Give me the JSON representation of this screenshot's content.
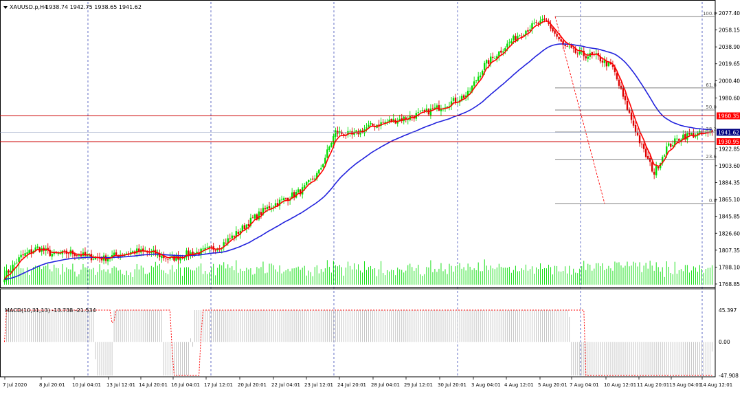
{
  "header": {
    "symbol": "XAUUSD.p,H4",
    "ohlc": "1938.74 1942.75 1938.65 1941.62"
  },
  "macd_header": "MACD(10,31,13) -13.738 -21.534",
  "colors": {
    "background": "#ffffff",
    "grid": "#3b4ab8",
    "bull_candle": "#00dd00",
    "bear_candle": "#dd0000",
    "fast_ma": "#ff0000",
    "slow_ma": "#2222dd",
    "volume": "#00dd00",
    "macd_hist": "#c0c0c0",
    "macd_signal": "#ff0000",
    "hline": "#cc0000",
    "fib": "#555555",
    "price_label_red": "#ff0000",
    "price_label_dark": "#000080"
  },
  "chart_data": [
    {
      "type": "candlestick",
      "title": "XAUUSD.p,H4",
      "x_ticks": [
        "7 Jul 2020",
        "8 Jul 20:01",
        "10 Jul 04:01",
        "13 Jul 12:01",
        "14 Jul 20:01",
        "16 Jul 04:01",
        "17 Jul 12:01",
        "20 Jul 20:01",
        "22 Jul 04:01",
        "23 Jul 12:01",
        "24 Jul 20:01",
        "28 Jul 04:01",
        "29 Jul 12:01",
        "30 Jul 20:01",
        "3 Aug 04:01",
        "4 Aug 12:01",
        "5 Aug 20:01",
        "7 Aug 04:01",
        "10 Aug 12:01",
        "11 Aug 20:01",
        "13 Aug 04:01",
        "14 Aug 12:01"
      ],
      "y_ticks": [
        2077.4,
        2058.15,
        2038.9,
        2019.65,
        2000.4,
        1980.6,
        1960.35,
        1941.62,
        1930.95,
        1922.85,
        1903.6,
        1884.35,
        1865.1,
        1845.85,
        1826.6,
        1807.35,
        1788.1,
        1768.85
      ],
      "ylim": [
        1768.85,
        2077.4
      ],
      "price_labels": [
        {
          "value": 1960.35,
          "label": "1960.35",
          "style": "red"
        },
        {
          "value": 1941.62,
          "label": "1941.62",
          "style": "dark"
        },
        {
          "value": 1930.95,
          "label": "1930.95",
          "style": "red"
        }
      ],
      "horizontal_lines": [
        1960.35,
        1930.95
      ],
      "fibonacci": {
        "high": 2073.5,
        "low": 1860.5,
        "levels": [
          {
            "label": "100.0",
            "ratio": 1.0
          },
          {
            "label": "61.8",
            "ratio": 0.618
          },
          {
            "label": "50.0",
            "ratio": 0.5
          },
          {
            "label": "38.2",
            "ratio": 0.382
          },
          {
            "label": "23.6",
            "ratio": 0.236
          },
          {
            "label": "0.0",
            "ratio": 0.0
          }
        ]
      },
      "close_anchors": [
        [
          0,
          1778
        ],
        [
          8,
          1800
        ],
        [
          16,
          1810
        ],
        [
          24,
          1802
        ],
        [
          32,
          1805
        ],
        [
          40,
          1800
        ],
        [
          48,
          1798
        ],
        [
          56,
          1803
        ],
        [
          64,
          1806
        ],
        [
          72,
          1804
        ],
        [
          80,
          1797
        ],
        [
          88,
          1803
        ],
        [
          96,
          1806
        ],
        [
          104,
          1812
        ],
        [
          112,
          1826
        ],
        [
          120,
          1843
        ],
        [
          128,
          1857
        ],
        [
          136,
          1866
        ],
        [
          144,
          1876
        ],
        [
          152,
          1896
        ],
        [
          160,
          1942
        ],
        [
          168,
          1938
        ],
        [
          176,
          1948
        ],
        [
          184,
          1953
        ],
        [
          192,
          1957
        ],
        [
          200,
          1962
        ],
        [
          208,
          1968
        ],
        [
          216,
          1976
        ],
        [
          224,
          1985
        ],
        [
          232,
          2018
        ],
        [
          240,
          2035
        ],
        [
          248,
          2052
        ],
        [
          256,
          2064
        ],
        [
          262,
          2068
        ],
        [
          270,
          2040
        ],
        [
          278,
          2030
        ],
        [
          286,
          2028
        ],
        [
          294,
          2015
        ],
        [
          300,
          1975
        ],
        [
          308,
          1925
        ],
        [
          314,
          1895
        ],
        [
          320,
          1924
        ],
        [
          328,
          1938
        ],
        [
          334,
          1939
        ],
        [
          340,
          1940
        ],
        [
          342,
          1941.62
        ]
      ],
      "volume_max": 1.0,
      "series": [
        {
          "name": "",
          "kind": "ma_fast",
          "period": 5
        },
        {
          "name": "",
          "kind": "ma_slow",
          "period": 40
        }
      ]
    },
    {
      "type": "macd",
      "title": "MACD(10,31,13) -13.738 -21.534",
      "y_ticks": [
        45.397,
        0.0,
        -47.908
      ],
      "ylim": [
        -47.908,
        45.397
      ],
      "main": -13.738,
      "signal": -21.534
    }
  ]
}
